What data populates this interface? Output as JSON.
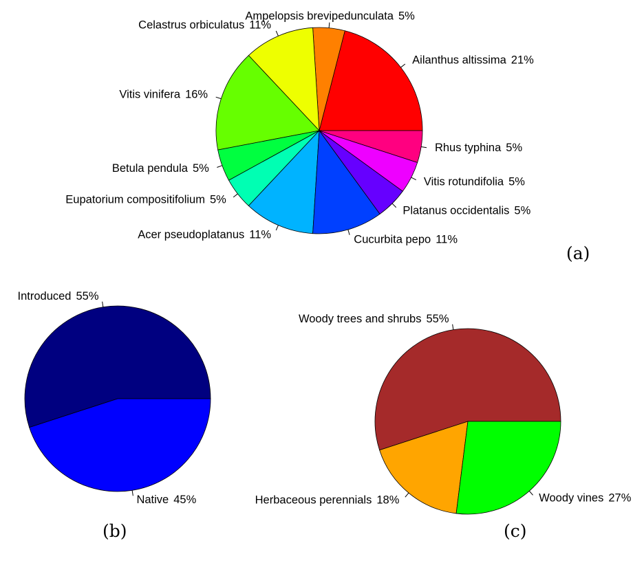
{
  "chart_data": [
    {
      "type": "pie",
      "panel_label": "(a)",
      "start_angle_deg": 0,
      "direction": "counterclockwise",
      "labels": [
        "Ailanthus altissima",
        "Ampelopsis brevipedunculata",
        "Celastrus orbiculatus",
        "Vitis vinifera",
        "Betula pendula",
        "Eupatorium compositifolium",
        "Acer pseudoplatanus",
        "Cucurbita pepo",
        "Platanus occidentalis",
        "Vitis rotundifolia",
        "Rhus typhina"
      ],
      "values": [
        21,
        5,
        11,
        16,
        5,
        5,
        11,
        11,
        5,
        5,
        5
      ],
      "value_labels": [
        "21%",
        "5%",
        "11%",
        "16%",
        "5%",
        "5%",
        "11%",
        "11%",
        "5%",
        "5%",
        "5%"
      ],
      "colors": [
        "#FF0000",
        "#FF8000",
        "#EEFF00",
        "#66FF00",
        "#00FF40",
        "#00FFB3",
        "#00B3FF",
        "#0040FF",
        "#6600FF",
        "#EE00FF",
        "#FF0080"
      ]
    },
    {
      "type": "pie",
      "panel_label": "(b)",
      "start_angle_deg": 0,
      "direction": "counterclockwise",
      "labels": [
        "Introduced",
        "Native"
      ],
      "values": [
        55,
        45
      ],
      "value_labels": [
        "55%",
        "45%"
      ],
      "colors": [
        "#000080",
        "#0000FF"
      ]
    },
    {
      "type": "pie",
      "panel_label": "(c)",
      "start_angle_deg": 0,
      "direction": "counterclockwise",
      "labels": [
        "Woody trees and shrubs",
        "Herbaceous perennials",
        "Woody vines"
      ],
      "values": [
        55,
        18,
        27
      ],
      "value_labels": [
        "55%",
        "18%",
        "27%"
      ],
      "colors": [
        "#A52A2A",
        "#FFA500",
        "#00FF00"
      ]
    }
  ]
}
